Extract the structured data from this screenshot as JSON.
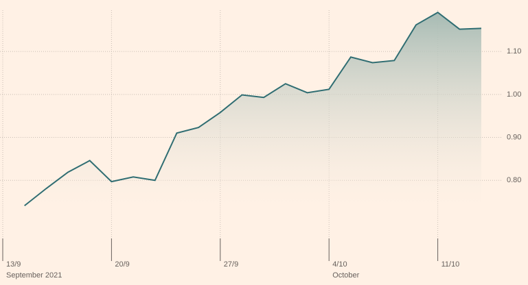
{
  "chart_data": {
    "type": "line",
    "categories": [
      "13/9",
      null,
      null,
      null,
      null,
      "20/9",
      null,
      null,
      null,
      null,
      "27/9",
      null,
      null,
      null,
      null,
      "4/10",
      null,
      null,
      null,
      null,
      "11/10",
      null,
      null
    ],
    "secondary_labels": [
      "September 2021",
      null,
      null,
      null,
      null,
      null,
      null,
      null,
      null,
      null,
      null,
      null,
      null,
      null,
      null,
      "October",
      null,
      null,
      null,
      null,
      null,
      null,
      null
    ],
    "series": [
      {
        "color": "#2f6d72",
        "values": [
          null,
          0.741,
          0.781,
          0.819,
          0.846,
          0.797,
          0.808,
          0.8,
          0.91,
          0.923,
          0.958,
          0.999,
          0.993,
          1.025,
          1.004,
          1.012,
          1.087,
          1.074,
          1.079,
          1.162,
          1.191,
          1.152,
          1.154
        ]
      }
    ],
    "ylim": [
      0.66,
      1.196
    ],
    "yticks": [
      {
        "value": 0.8,
        "label": "0.80"
      },
      {
        "value": 0.9,
        "label": "0.90"
      },
      {
        "value": 1.0,
        "label": "1.00"
      },
      {
        "value": 1.1,
        "label": "1.10"
      }
    ],
    "grid": true,
    "area_fill": true
  }
}
